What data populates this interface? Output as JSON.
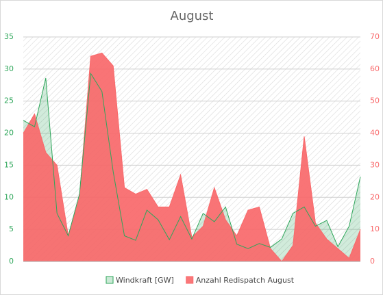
{
  "chart_data": {
    "type": "area",
    "title": "August",
    "series": [
      {
        "name": "Windkraft [GW]",
        "color": "#2ea65a",
        "axis": "y",
        "values": [
          22,
          21,
          28.6,
          7.5,
          4,
          10.5,
          29.3,
          26.5,
          14,
          4,
          3.3,
          8,
          6.5,
          3.4,
          7,
          3.5,
          7.5,
          6.2,
          8.5,
          2.7,
          2,
          2.8,
          2.2,
          3.5,
          7.5,
          8.5,
          5.5,
          6.4,
          2.3,
          5.5,
          13.2
        ]
      },
      {
        "name": "Anzahl Redispatch August",
        "color": "#f9686a",
        "axis": "y2",
        "values": [
          40,
          46,
          34,
          30,
          8,
          20,
          64,
          65,
          61,
          23,
          21,
          22.5,
          17,
          17,
          27,
          7.5,
          11,
          23,
          13,
          8,
          16,
          17,
          4,
          0,
          5,
          39,
          12,
          7,
          4,
          1,
          10
        ]
      }
    ],
    "ylim": [
      0,
      35
    ],
    "yticks": [
      0,
      5,
      10,
      15,
      20,
      25,
      30,
      35
    ],
    "y2lim": [
      0,
      70
    ],
    "y2ticks": [
      0,
      10,
      20,
      30,
      40,
      50,
      60,
      70
    ],
    "grid": true,
    "legend": "bottom"
  }
}
